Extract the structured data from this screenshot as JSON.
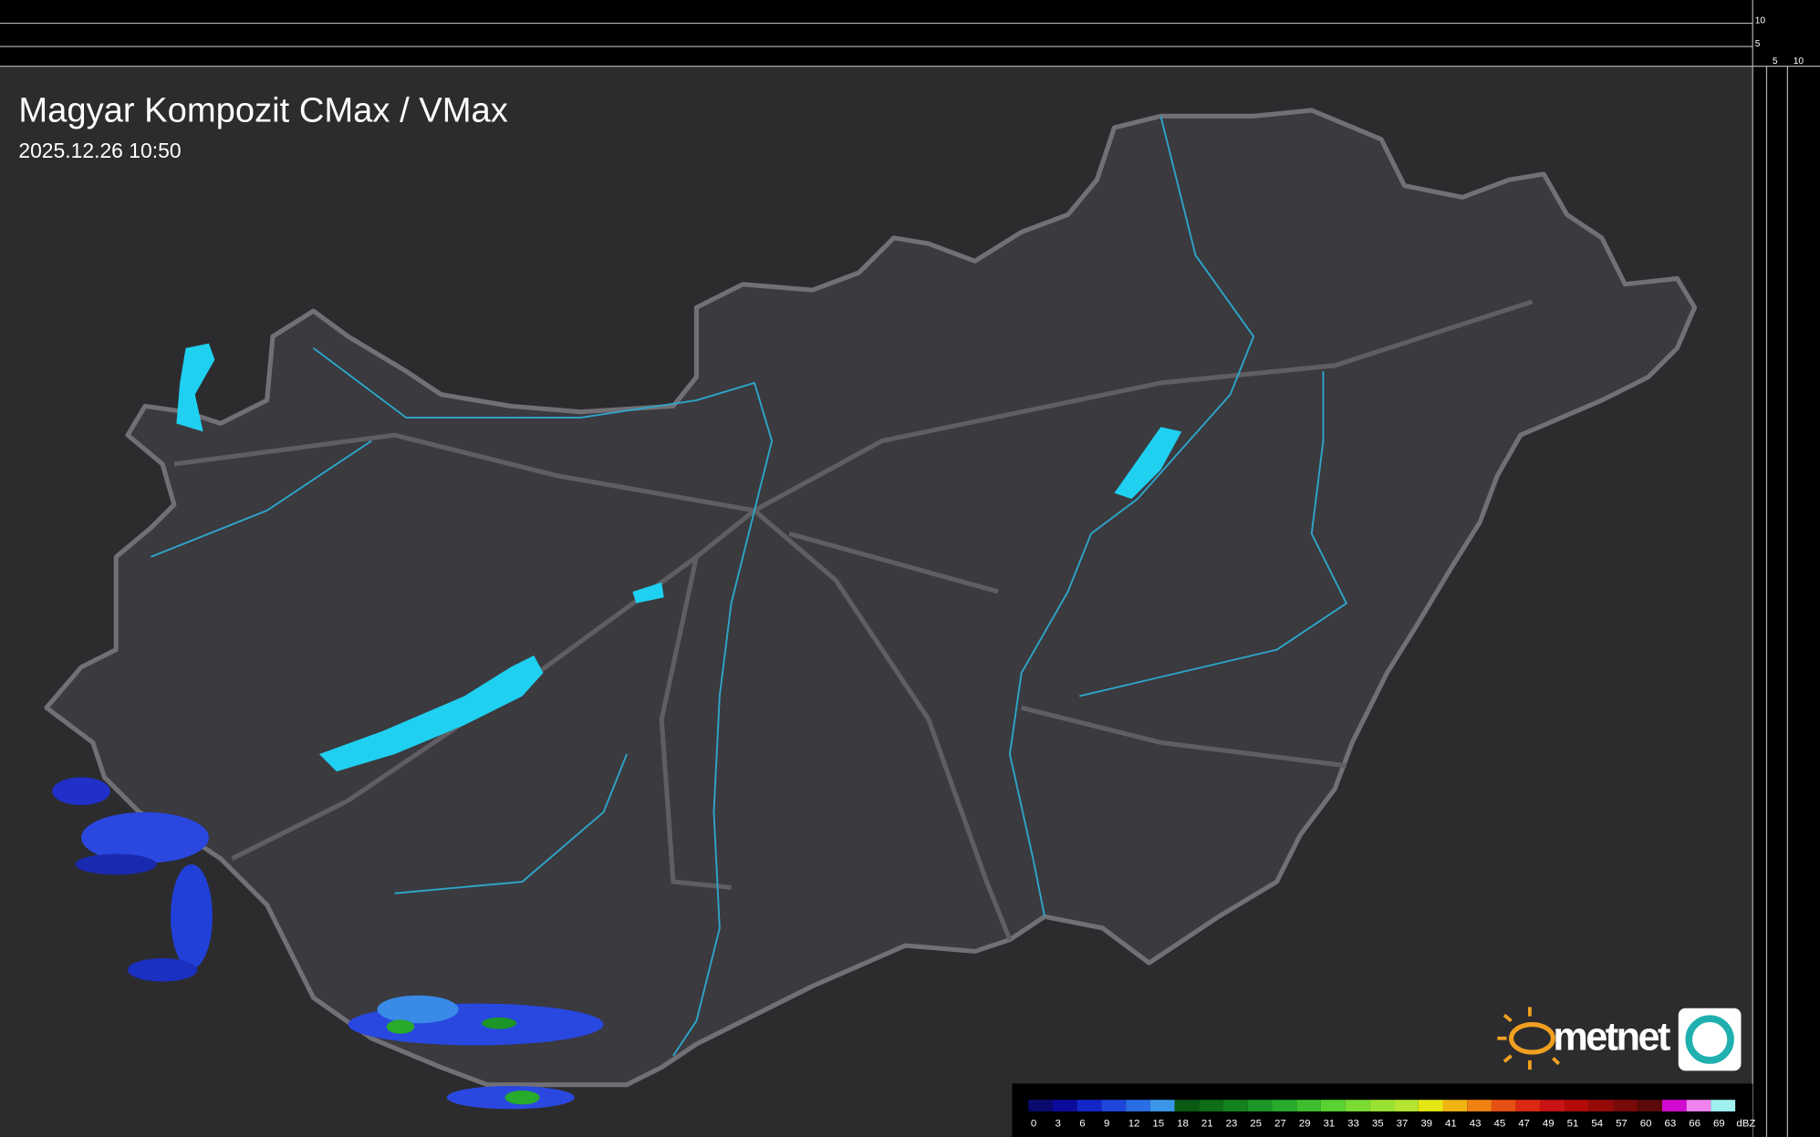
{
  "header": {
    "title": "Magyar Kompozit CMax / VMax",
    "timestamp": "2025.12.26 10:50"
  },
  "profile_axes": {
    "top_ticks": [
      "10",
      "5"
    ],
    "side_ticks": [
      "5",
      "10"
    ]
  },
  "logo": {
    "text": "metnet"
  },
  "legend": {
    "unit": "dBZ",
    "levels": [
      {
        "value": 0,
        "color": "#0a0a6e"
      },
      {
        "value": 3,
        "color": "#0c0c9c"
      },
      {
        "value": 6,
        "color": "#1426c8"
      },
      {
        "value": 9,
        "color": "#1e46dc"
      },
      {
        "value": 12,
        "color": "#2a6ee6"
      },
      {
        "value": 15,
        "color": "#3a96e8"
      },
      {
        "value": 18,
        "color": "#0a5a14"
      },
      {
        "value": 21,
        "color": "#0e6e18"
      },
      {
        "value": 23,
        "color": "#14821e"
      },
      {
        "value": 25,
        "color": "#1c9626"
      },
      {
        "value": 27,
        "color": "#28aa2a"
      },
      {
        "value": 29,
        "color": "#3cbe2e"
      },
      {
        "value": 31,
        "color": "#5ad232"
      },
      {
        "value": 33,
        "color": "#7adc32"
      },
      {
        "value": 35,
        "color": "#9ae232"
      },
      {
        "value": 37,
        "color": "#b4e632"
      },
      {
        "value": 39,
        "color": "#e6e614"
      },
      {
        "value": 41,
        "color": "#f0b414"
      },
      {
        "value": 43,
        "color": "#f08214"
      },
      {
        "value": 45,
        "color": "#e65014"
      },
      {
        "value": 47,
        "color": "#dc2814"
      },
      {
        "value": 49,
        "color": "#c81414"
      },
      {
        "value": 51,
        "color": "#b40a0a"
      },
      {
        "value": 54,
        "color": "#960a0a"
      },
      {
        "value": 57,
        "color": "#780a0a"
      },
      {
        "value": 60,
        "color": "#5a0a0a"
      },
      {
        "value": 63,
        "color": "#d20ad2"
      },
      {
        "value": 66,
        "color": "#f082f0"
      },
      {
        "value": 69,
        "color": "#a0f0f0"
      }
    ]
  }
}
